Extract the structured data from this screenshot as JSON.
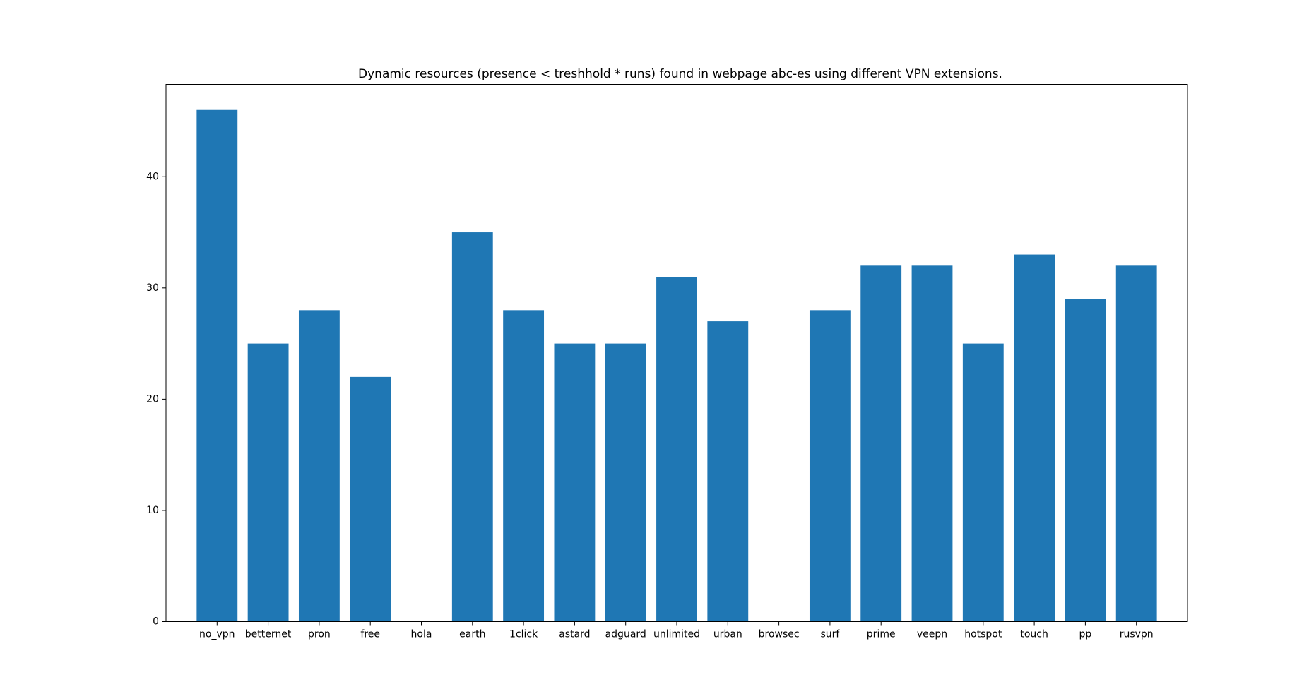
{
  "chart_data": {
    "type": "bar",
    "title": "Dynamic resources (presence < treshhold * runs) found in webpage abc-es using different VPN extensions.",
    "xlabel": "",
    "ylabel": "",
    "categories": [
      "no_vpn",
      "betternet",
      "pron",
      "free",
      "hola",
      "earth",
      "1click",
      "astard",
      "adguard",
      "unlimited",
      "urban",
      "browsec",
      "surf",
      "prime",
      "veepn",
      "hotspot",
      "touch",
      "pp",
      "rusvpn"
    ],
    "values": [
      46,
      25,
      28,
      22,
      0,
      35,
      28,
      25,
      25,
      31,
      27,
      0,
      28,
      32,
      32,
      25,
      33,
      29,
      32
    ],
    "ylim": [
      0,
      48.3
    ],
    "yticks": [
      0,
      10,
      20,
      30,
      40
    ],
    "grid": false,
    "bar_color": "#1f77b4"
  }
}
